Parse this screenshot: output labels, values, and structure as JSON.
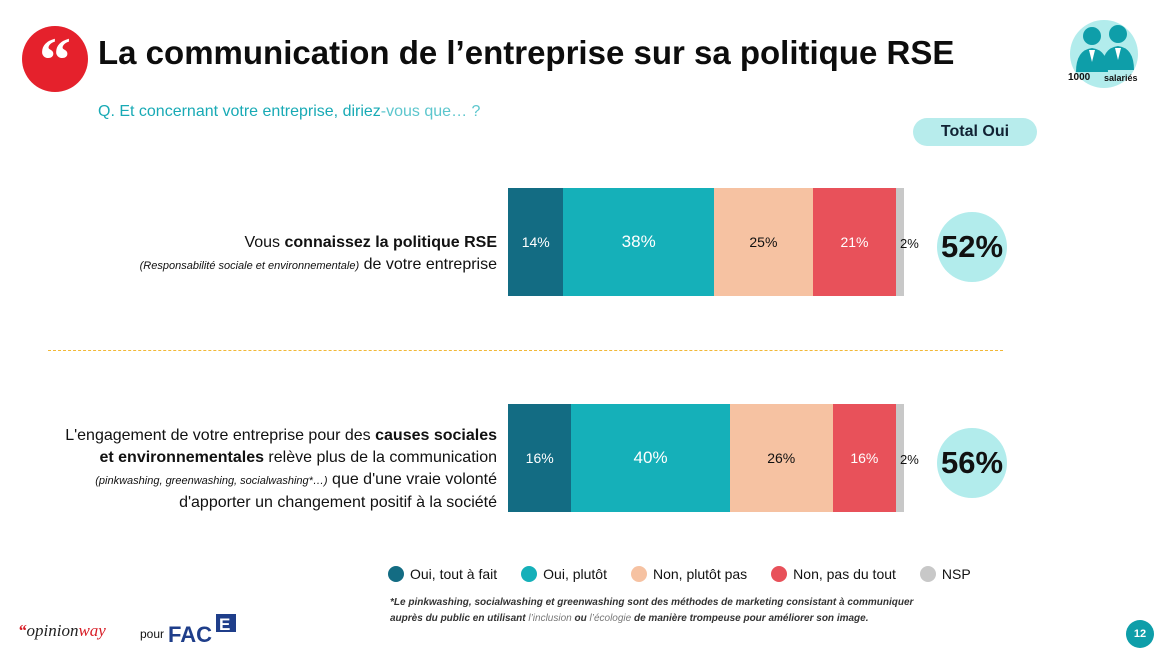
{
  "header": {
    "title": "La communication de l’entreprise sur sa politique RSE",
    "question_prefix": "Q. Et concernant votre entreprise, diriez",
    "question_suffix": "-vous que… ?",
    "total_label": "Total Oui",
    "sample_size": "1000",
    "sample_label": "salariés"
  },
  "colors": {
    "oui_tout_a_fait": "#136c83",
    "oui_plutot": "#15b0b9",
    "non_plutot_pas": "#f6c2a2",
    "non_pas_du_tout": "#e8515a",
    "nsp": "#c8c8c8",
    "accent_red": "#e5212c",
    "teal_light": "#b2ecec"
  },
  "rows": [
    {
      "line1_prefix": "Vous ",
      "line1_bold": "connaissez la politique RSE",
      "line2_small": "(Responsabilité sociale et environnementale)",
      "line2_rest": " de votre entreprise",
      "labels": [
        "14%",
        "38%",
        "25%",
        "21%",
        "2%"
      ],
      "total": "52%"
    },
    {
      "line1_prefix": "L'engagement de votre entreprise pour des ",
      "line1_bold": "causes sociales",
      "line2_bold": "et environnementales",
      "line2_rest": " relève plus de la communication",
      "line3_small": "(pinkwashing, greenwashing, socialwashing*…)",
      "line3_rest": " que d'une vraie volonté",
      "line4": "d'apporter un changement positif à la société",
      "labels": [
        "16%",
        "40%",
        "26%",
        "16%",
        "2%"
      ],
      "total": "56%"
    }
  ],
  "chart_data": {
    "type": "bar",
    "orientation": "horizontal",
    "stacked": true,
    "categories": [
      "Vous connaissez la politique RSE (Responsabilité sociale et environnementale) de votre entreprise",
      "L'engagement de votre entreprise pour des causes sociales et environnementales relève plus de la communication (pinkwashing, greenwashing, socialwashing*…) que d'une vraie volonté d'apporter un changement positif à la société"
    ],
    "series": [
      {
        "name": "Oui, tout à fait",
        "values": [
          14,
          16
        ]
      },
      {
        "name": "Oui, plutôt",
        "values": [
          38,
          40
        ]
      },
      {
        "name": "Non, plutôt pas",
        "values": [
          25,
          26
        ]
      },
      {
        "name": "Non, pas du tout",
        "values": [
          21,
          16
        ]
      },
      {
        "name": "NSP",
        "values": [
          2,
          2
        ]
      }
    ],
    "totals": {
      "label": "Total Oui",
      "values": [
        52,
        56
      ]
    },
    "xlim": [
      0,
      100
    ],
    "legend_position": "bottom"
  },
  "legend": [
    "Oui, tout à fait",
    "Oui, plutôt",
    "Non, plutôt pas",
    "Non, pas du tout",
    "NSP"
  ],
  "footnote": {
    "line1": "*Le pinkwashing, socialwashing et greenwashing sont des méthodes de marketing consistant à communiquer",
    "line2_a": "auprès du public en utilisant ",
    "line2_b": "l’inclusion",
    "line2_c": " ou ",
    "line2_d": "l’écologie",
    "line2_e": " de manière trompeuse pour améliorer son image."
  },
  "footer": {
    "logo_quote": "“",
    "logo_opinion": "opinion",
    "logo_way": "way",
    "pour": "pour",
    "face_logo": "FACE",
    "page_number": "12"
  }
}
